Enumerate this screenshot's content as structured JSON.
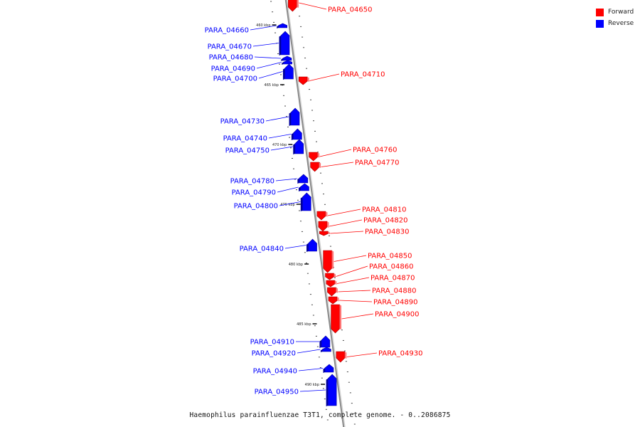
{
  "legend": [
    {
      "label": "Forward",
      "color": "#ff0000"
    },
    {
      "label": "Reverse",
      "color": "#0000ff"
    }
  ],
  "caption": "Haemophilus parainfluenzae T3T1, complete genome. - 0..2086875",
  "ticks": [
    {
      "label": "460 kbp",
      "kbp": 460
    },
    {
      "label": "465 kbp",
      "kbp": 465
    },
    {
      "label": "470 kbp",
      "kbp": 470
    },
    {
      "label": "475 kbp",
      "kbp": 475
    },
    {
      "label": "480 kbp",
      "kbp": 480
    },
    {
      "label": "485 kbp",
      "kbp": 485
    },
    {
      "label": "490 kbp",
      "kbp": 490
    }
  ],
  "genes": [
    {
      "name": "PARA_04650",
      "strand": "forward"
    },
    {
      "name": "PARA_04660",
      "strand": "reverse"
    },
    {
      "name": "PARA_04670",
      "strand": "reverse"
    },
    {
      "name": "PARA_04680",
      "strand": "reverse"
    },
    {
      "name": "PARA_04690",
      "strand": "reverse"
    },
    {
      "name": "PARA_04700",
      "strand": "reverse"
    },
    {
      "name": "PARA_04710",
      "strand": "forward"
    },
    {
      "name": "PARA_04730",
      "strand": "reverse"
    },
    {
      "name": "PARA_04740",
      "strand": "reverse"
    },
    {
      "name": "PARA_04750",
      "strand": "reverse"
    },
    {
      "name": "PARA_04760",
      "strand": "forward"
    },
    {
      "name": "PARA_04770",
      "strand": "forward"
    },
    {
      "name": "PARA_04780",
      "strand": "reverse"
    },
    {
      "name": "PARA_04790",
      "strand": "reverse"
    },
    {
      "name": "PARA_04800",
      "strand": "reverse"
    },
    {
      "name": "PARA_04810",
      "strand": "forward"
    },
    {
      "name": "PARA_04820",
      "strand": "forward"
    },
    {
      "name": "PARA_04830",
      "strand": "forward"
    },
    {
      "name": "PARA_04840",
      "strand": "reverse"
    },
    {
      "name": "PARA_04850",
      "strand": "forward"
    },
    {
      "name": "PARA_04860",
      "strand": "forward"
    },
    {
      "name": "PARA_04870",
      "strand": "forward"
    },
    {
      "name": "PARA_04880",
      "strand": "forward"
    },
    {
      "name": "PARA_04890",
      "strand": "forward"
    },
    {
      "name": "PARA_04900",
      "strand": "forward"
    },
    {
      "name": "PARA_04910",
      "strand": "reverse"
    },
    {
      "name": "PARA_04920",
      "strand": "reverse"
    },
    {
      "name": "PARA_04930",
      "strand": "forward"
    },
    {
      "name": "PARA_04940",
      "strand": "reverse"
    },
    {
      "name": "PARA_04950",
      "strand": "reverse"
    }
  ]
}
